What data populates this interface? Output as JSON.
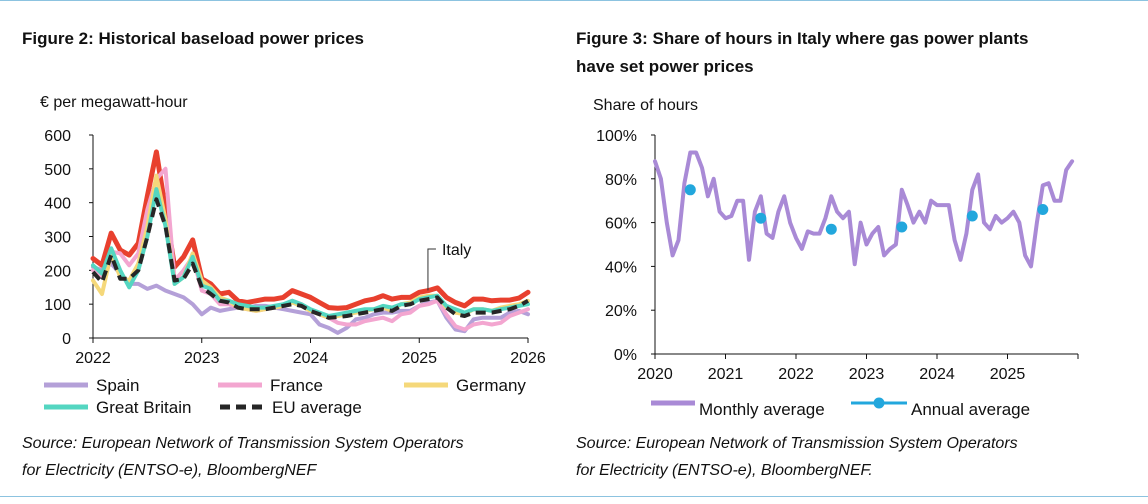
{
  "figure2": {
    "title": "Figure 2:  Historical baseload power prices",
    "unit_label": "€ per megawatt-hour",
    "source_line1": "Source: European Network of Transmission System Operators",
    "source_line2": "for Electricity (ENTSO-e), BloombergNEF"
  },
  "figure3": {
    "title_line1": "Figure 3:  Share of hours in Italy where gas power plants",
    "title_line2": "have set power prices",
    "unit_label": "Share of hours",
    "source_line1": "Source: European Network of Transmission System Operators",
    "source_line2": "for Electricity (ENTSO-e), BloombergNEF."
  },
  "chart_data": [
    {
      "type": "line",
      "title": "Historical baseload power prices",
      "ylabel": "€ per megawatt-hour",
      "ylim": [
        0,
        600
      ],
      "yticks": [
        0,
        100,
        200,
        300,
        400,
        500,
        600
      ],
      "xlim": [
        2022,
        2026
      ],
      "xticks": [
        "2022",
        "2023",
        "2024",
        "2025",
        "2026"
      ],
      "annotation": "Italy",
      "x": [
        2022.0,
        2022.083,
        2022.167,
        2022.25,
        2022.333,
        2022.417,
        2022.5,
        2022.583,
        2022.667,
        2022.75,
        2022.833,
        2022.917,
        2023.0,
        2023.083,
        2023.167,
        2023.25,
        2023.333,
        2023.417,
        2023.5,
        2023.583,
        2023.667,
        2023.75,
        2023.833,
        2023.917,
        2024.0,
        2024.083,
        2024.167,
        2024.25,
        2024.333,
        2024.417,
        2024.5,
        2024.583,
        2024.667,
        2024.75,
        2024.833,
        2024.917,
        2025.0,
        2025.083,
        2025.167,
        2025.25,
        2025.333,
        2025.417,
        2025.5,
        2025.583,
        2025.667,
        2025.75,
        2025.833,
        2025.917,
        2026.0
      ],
      "series": [
        {
          "name": "Italy",
          "legend": false,
          "color": "#e8402e",
          "values": [
            235,
            215,
            310,
            260,
            245,
            280,
            420,
            550,
            380,
            210,
            240,
            290,
            175,
            160,
            130,
            135,
            110,
            105,
            110,
            115,
            115,
            120,
            140,
            130,
            120,
            105,
            90,
            88,
            90,
            100,
            110,
            115,
            125,
            115,
            120,
            120,
            135,
            140,
            148,
            120,
            105,
            95,
            115,
            115,
            110,
            112,
            112,
            118,
            135
          ]
        },
        {
          "name": "Spain",
          "legend": true,
          "color": "#b4a0d8",
          "values": [
            210,
            200,
            220,
            190,
            160,
            160,
            145,
            155,
            140,
            130,
            120,
            100,
            70,
            90,
            80,
            85,
            90,
            90,
            95,
            95,
            90,
            85,
            80,
            75,
            70,
            40,
            30,
            15,
            30,
            55,
            60,
            70,
            75,
            75,
            80,
            80,
            95,
            105,
            110,
            60,
            25,
            20,
            55,
            60,
            60,
            60,
            75,
            80,
            70
          ]
        },
        {
          "name": "France",
          "legend": true,
          "color": "#f3a6d0",
          "values": [
            200,
            180,
            255,
            250,
            215,
            250,
            380,
            470,
            500,
            170,
            200,
            240,
            140,
            130,
            100,
            100,
            90,
            85,
            80,
            85,
            90,
            95,
            110,
            100,
            80,
            70,
            60,
            45,
            40,
            40,
            50,
            55,
            60,
            50,
            70,
            75,
            95,
            100,
            110,
            70,
            35,
            25,
            40,
            45,
            40,
            45,
            65,
            75,
            85
          ]
        },
        {
          "name": "Germany",
          "legend": true,
          "color": "#f5d87a",
          "values": [
            170,
            130,
            250,
            180,
            170,
            220,
            330,
            480,
            350,
            160,
            180,
            250,
            170,
            150,
            120,
            110,
            90,
            85,
            80,
            85,
            90,
            95,
            105,
            95,
            80,
            70,
            60,
            65,
            70,
            75,
            80,
            85,
            90,
            80,
            100,
            105,
            120,
            125,
            125,
            90,
            75,
            70,
            85,
            85,
            80,
            90,
            95,
            100,
            110
          ]
        },
        {
          "name": "Great Britain",
          "legend": true,
          "color": "#54d6c1",
          "values": [
            215,
            190,
            265,
            200,
            150,
            200,
            300,
            440,
            330,
            160,
            180,
            240,
            155,
            145,
            110,
            110,
            100,
            95,
            90,
            90,
            95,
            100,
            110,
            100,
            85,
            75,
            65,
            70,
            75,
            80,
            85,
            85,
            95,
            90,
            100,
            100,
            115,
            120,
            125,
            95,
            85,
            75,
            85,
            85,
            80,
            85,
            90,
            95,
            100
          ]
        },
        {
          "name": "EU average",
          "legend": true,
          "color": "#262626",
          "dashed": true,
          "values": [
            195,
            165,
            245,
            175,
            175,
            200,
            300,
            410,
            330,
            170,
            175,
            220,
            150,
            130,
            110,
            105,
            90,
            85,
            85,
            85,
            90,
            95,
            100,
            95,
            80,
            70,
            60,
            62,
            65,
            70,
            75,
            80,
            85,
            80,
            95,
            100,
            110,
            115,
            120,
            90,
            70,
            65,
            75,
            75,
            75,
            80,
            85,
            95,
            110
          ]
        }
      ]
    },
    {
      "type": "line",
      "title": "Share of hours in Italy where gas power plants have set power prices",
      "ylabel": "Share of hours",
      "ylim": [
        0,
        100
      ],
      "yticks": [
        "0%",
        "20%",
        "40%",
        "60%",
        "80%",
        "100%"
      ],
      "xlim": [
        2020,
        2026
      ],
      "xticks": [
        "2020",
        "2021",
        "2022",
        "2023",
        "2024",
        "2025"
      ],
      "series": [
        {
          "name": "Monthly average",
          "color": "#a98ad6",
          "x": [
            2020.0,
            2020.083,
            2020.167,
            2020.25,
            2020.333,
            2020.417,
            2020.5,
            2020.583,
            2020.667,
            2020.75,
            2020.833,
            2020.917,
            2021.0,
            2021.083,
            2021.167,
            2021.25,
            2021.333,
            2021.417,
            2021.5,
            2021.583,
            2021.667,
            2021.75,
            2021.833,
            2021.917,
            2022.0,
            2022.083,
            2022.167,
            2022.25,
            2022.333,
            2022.417,
            2022.5,
            2022.583,
            2022.667,
            2022.75,
            2022.833,
            2022.917,
            2023.0,
            2023.083,
            2023.167,
            2023.25,
            2023.333,
            2023.417,
            2023.5,
            2023.583,
            2023.667,
            2023.75,
            2023.833,
            2023.917,
            2024.0,
            2024.083,
            2024.167,
            2024.25,
            2024.333,
            2024.417,
            2024.5,
            2024.583,
            2024.667,
            2024.75,
            2024.833,
            2024.917,
            2025.0,
            2025.083,
            2025.167,
            2025.25,
            2025.333,
            2025.417,
            2025.5,
            2025.583,
            2025.667,
            2025.75,
            2025.833,
            2025.917
          ],
          "values": [
            88,
            80,
            60,
            45,
            52,
            78,
            92,
            92,
            85,
            72,
            80,
            65,
            62,
            63,
            70,
            70,
            43,
            65,
            72,
            55,
            53,
            65,
            72,
            60,
            53,
            48,
            56,
            55,
            55,
            62,
            72,
            65,
            62,
            65,
            41,
            60,
            50,
            55,
            58,
            45,
            48,
            50,
            75,
            68,
            60,
            65,
            60,
            70,
            68,
            68,
            68,
            52,
            43,
            55,
            75,
            82,
            60,
            57,
            63,
            60,
            62,
            65,
            60,
            45,
            40,
            60,
            77,
            78,
            70,
            70,
            84,
            88
          ]
        },
        {
          "name": "Annual average",
          "color": "#22a7dd",
          "marker": true,
          "x": [
            2020.5,
            2021.5,
            2022.5,
            2023.5,
            2024.5,
            2025.5
          ],
          "values": [
            75,
            62,
            57,
            58,
            63,
            66
          ]
        }
      ]
    }
  ]
}
